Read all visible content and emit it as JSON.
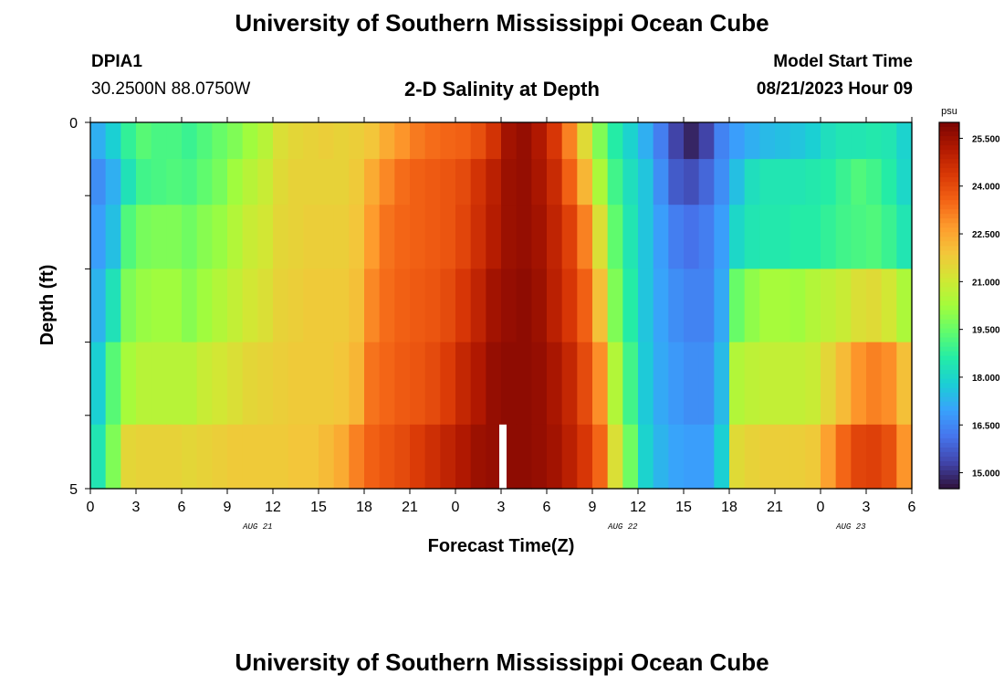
{
  "page": {
    "title": "University of Southern Mississippi Ocean Cube",
    "station_id": "DPIA1",
    "station_coords": "30.2500N  88.0750W",
    "subtitle": "2-D Salinity at Depth",
    "model_start_label": "Model Start Time",
    "model_start_value": "08/21/2023 Hour 09",
    "footer_title": "University of Southern Mississippi Ocean Cube"
  },
  "chart_data": {
    "type": "heatmap",
    "title": "2-D Salinity at Depth",
    "xlabel": "Forecast Time(Z)",
    "ylabel": "Depth (ft)",
    "x_tick_labels": [
      "0",
      "3",
      "6",
      "9",
      "12",
      "15",
      "18",
      "21",
      "0",
      "3",
      "6",
      "9",
      "12",
      "15",
      "18",
      "21",
      "0",
      "3",
      "6"
    ],
    "date_labels": [
      {
        "label": "AUG 21",
        "at_hour": 11
      },
      {
        "label": "AUG 22",
        "at_hour": 35
      },
      {
        "label": "AUG 23",
        "at_hour": 50
      }
    ],
    "xlim_hours": [
      0,
      54
    ],
    "y_tick_labels": [
      "0",
      "5"
    ],
    "ylim": [
      0,
      5
    ],
    "depth_levels": [
      0.25,
      0.75,
      1.5,
      2.5,
      3.5,
      4.75
    ],
    "colorbar": {
      "unit": "psu",
      "min": 14.5,
      "max": 26.0,
      "tick_labels": [
        "25.500",
        "24.000",
        "22.500",
        "21.000",
        "19.500",
        "18.000",
        "16.500",
        "15.000"
      ],
      "tick_values": [
        25.5,
        24.0,
        22.5,
        21.0,
        19.5,
        18.0,
        16.5,
        15.0
      ],
      "colors": [
        "#30123b",
        "#4145ab",
        "#4675ed",
        "#39a2fc",
        "#1bcfd4",
        "#24eca6",
        "#61fc6c",
        "#a4fc3b",
        "#d1e834",
        "#f3c63a",
        "#fe9b2d",
        "#f36315",
        "#d93806",
        "#b11901",
        "#7a0402"
      ]
    },
    "missing_column_hour": 27,
    "series": [
      {
        "depth": 0.25,
        "values": [
          17.2,
          17.8,
          18.8,
          19.3,
          19.1,
          19.1,
          18.9,
          19.2,
          19.5,
          19.8,
          20.2,
          20.6,
          21.3,
          21.5,
          21.6,
          21.7,
          21.6,
          21.7,
          21.9,
          22.4,
          22.8,
          23.2,
          23.4,
          23.5,
          23.6,
          23.9,
          24.5,
          25.4,
          25.6,
          25.2,
          24.4,
          23.1,
          21.4,
          19.8,
          18.6,
          17.9,
          17.2,
          16.3,
          15.3,
          14.8,
          15.3,
          16.4,
          16.9,
          17.2,
          17.4,
          17.5,
          17.6,
          17.8,
          18.2,
          18.4,
          18.4,
          18.5,
          18.4,
          17.9
        ]
      },
      {
        "depth": 0.75,
        "values": [
          16.6,
          17.2,
          18.3,
          19.0,
          19.1,
          19.2,
          19.1,
          19.4,
          19.7,
          20.2,
          20.6,
          20.9,
          21.4,
          21.6,
          21.6,
          21.6,
          21.6,
          21.8,
          22.4,
          23.0,
          23.4,
          23.6,
          23.7,
          23.8,
          24.0,
          24.5,
          25.0,
          25.5,
          25.6,
          25.3,
          24.7,
          23.6,
          22.2,
          20.4,
          19.0,
          18.2,
          17.6,
          16.6,
          15.7,
          15.5,
          15.9,
          16.6,
          17.5,
          18.2,
          18.4,
          18.4,
          18.4,
          18.5,
          18.6,
          18.9,
          19.2,
          19.0,
          18.6,
          18.0
        ]
      },
      {
        "depth": 1.5,
        "values": [
          16.9,
          17.5,
          19.2,
          19.7,
          19.8,
          19.8,
          19.6,
          19.9,
          20.1,
          20.5,
          20.9,
          21.1,
          21.5,
          21.6,
          21.7,
          21.7,
          21.7,
          21.9,
          22.7,
          23.3,
          23.5,
          23.6,
          23.7,
          23.8,
          24.1,
          24.6,
          25.1,
          25.5,
          25.6,
          25.4,
          24.9,
          24.2,
          23.1,
          21.3,
          19.4,
          18.4,
          17.6,
          16.9,
          16.3,
          16.1,
          16.3,
          16.9,
          18.0,
          18.4,
          18.5,
          18.5,
          18.6,
          18.6,
          18.8,
          19.0,
          19.1,
          19.2,
          18.9,
          18.4
        ]
      },
      {
        "depth": 2.5,
        "values": [
          17.3,
          18.3,
          19.8,
          20.1,
          20.2,
          20.2,
          19.9,
          20.2,
          20.5,
          20.8,
          21.1,
          21.3,
          21.6,
          21.7,
          21.8,
          21.8,
          21.8,
          22.0,
          23.0,
          23.4,
          23.6,
          23.7,
          23.8,
          24.0,
          24.4,
          24.9,
          25.4,
          25.6,
          25.7,
          25.5,
          25.0,
          24.4,
          23.6,
          22.0,
          19.8,
          18.6,
          17.6,
          17.0,
          16.6,
          16.4,
          16.4,
          17.1,
          19.5,
          20.0,
          20.3,
          20.3,
          20.2,
          20.5,
          20.7,
          20.9,
          21.3,
          21.4,
          21.1,
          20.4
        ]
      },
      {
        "depth": 3.5,
        "values": [
          17.8,
          19.3,
          20.3,
          20.6,
          20.6,
          20.6,
          20.6,
          20.9,
          21.1,
          21.3,
          21.5,
          21.6,
          21.7,
          21.8,
          21.8,
          21.8,
          21.9,
          22.2,
          23.3,
          23.5,
          23.7,
          23.8,
          24.0,
          24.3,
          24.8,
          25.2,
          25.6,
          25.7,
          25.7,
          25.6,
          25.3,
          24.8,
          24.0,
          22.9,
          20.5,
          19.0,
          17.7,
          17.1,
          16.8,
          16.6,
          16.6,
          17.4,
          20.5,
          20.7,
          20.8,
          20.8,
          20.8,
          20.9,
          21.5,
          22.1,
          22.8,
          23.1,
          22.9,
          22.0
        ]
      },
      {
        "depth": 4.75,
        "values": [
          18.4,
          19.8,
          21.5,
          21.6,
          21.6,
          21.6,
          21.5,
          21.6,
          21.7,
          21.8,
          21.8,
          21.8,
          21.8,
          21.9,
          21.9,
          22.1,
          22.4,
          23.1,
          23.6,
          23.8,
          24.0,
          24.3,
          24.6,
          24.9,
          25.2,
          25.5,
          25.6,
          25.7,
          25.7,
          25.6,
          25.4,
          25.0,
          24.4,
          23.5,
          21.3,
          19.6,
          17.9,
          17.3,
          17.0,
          16.9,
          16.9,
          17.8,
          21.4,
          21.6,
          21.7,
          21.7,
          21.7,
          21.8,
          22.6,
          23.5,
          24.1,
          24.2,
          23.9,
          22.8
        ]
      }
    ]
  }
}
